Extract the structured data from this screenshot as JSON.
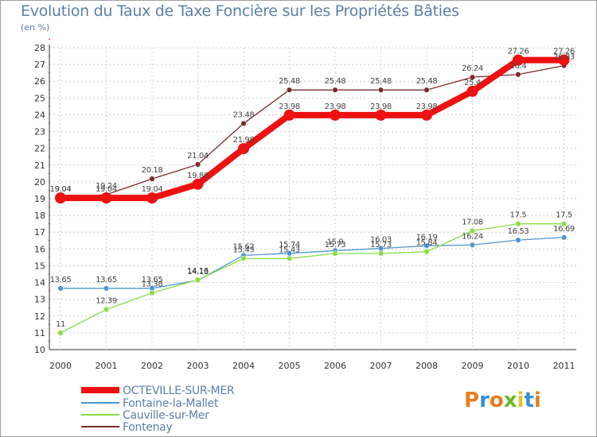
{
  "header": {
    "title": "Evolution du Taux de Taxe Foncière sur les Propriétés Bâties",
    "unit": "(en %)"
  },
  "brand": {
    "letters": [
      "P",
      "r",
      "o",
      "x",
      "i",
      "t",
      "i"
    ],
    "colors": [
      "#e87d1e",
      "#3b8fd4",
      "#e87d1e",
      "#66bb22",
      "#e8c21e",
      "#3b8fd4",
      "#e87d1e"
    ]
  },
  "chart_data": {
    "type": "line",
    "title": "Evolution du Taux de Taxe Foncière sur les Propriétés Bâties",
    "ylabel": "(en %)",
    "xlabel": "",
    "ylim": [
      10,
      28
    ],
    "yticks": [
      10,
      11,
      12,
      13,
      14,
      15,
      16,
      17,
      18,
      19,
      20,
      21,
      22,
      23,
      24,
      25,
      26,
      27,
      28
    ],
    "categories": [
      "2000",
      "2001",
      "2002",
      "2003",
      "2004",
      "2005",
      "2006",
      "2007",
      "2008",
      "2009",
      "2010",
      "2011"
    ],
    "legend_position": "bottom-left",
    "series": [
      {
        "name": "OCTEVILLE-SUR-MER",
        "color": "#ee1111",
        "emphasis": true,
        "values": [
          19.04,
          19.04,
          19.04,
          19.86,
          21.98,
          23.98,
          23.98,
          23.98,
          23.98,
          25.4,
          27.26,
          27.26
        ],
        "labels": [
          "19.04",
          "19.04",
          "19.04",
          "19.86",
          "21.98",
          "23.98",
          "23.98",
          "23.98",
          "23.98",
          "25.4",
          "27.26",
          "27.26"
        ]
      },
      {
        "name": "Fontaine-la-Mallet",
        "color": "#4f95d2",
        "emphasis": false,
        "values": [
          13.65,
          13.65,
          13.65,
          14.13,
          15.62,
          15.74,
          15.9,
          16.03,
          16.19,
          16.24,
          16.53,
          16.69
        ],
        "labels": [
          "13.65",
          "13.65",
          "13.65",
          "14.13",
          "15.62",
          "15.74",
          "15.9",
          "16.03",
          "16.19",
          "16.24",
          "16.53",
          "16.69"
        ]
      },
      {
        "name": "Cauville-sur-Mer",
        "color": "#88dd44",
        "emphasis": false,
        "values": [
          11,
          12.39,
          13.38,
          14.16,
          15.43,
          15.43,
          15.73,
          15.73,
          15.84,
          17.08,
          17.5,
          17.5
        ],
        "labels": [
          "11",
          "12.39",
          "13.38",
          "14.16",
          "15.43",
          "15.43",
          "15.73",
          "15.73",
          "15.84",
          "17.08",
          "17.5",
          "17.5"
        ]
      },
      {
        "name": "Fontenay",
        "color": "#7a2a2a",
        "emphasis": false,
        "values": [
          19.04,
          19.24,
          20.18,
          21.04,
          23.48,
          25.48,
          25.48,
          25.48,
          25.48,
          26.24,
          26.4,
          26.93
        ],
        "labels": [
          "19.04",
          "19.24",
          "20.18",
          "21.04",
          "23.48",
          "25.48",
          "25.48",
          "25.48",
          "25.48",
          "26.24",
          "26.4",
          "26.93"
        ]
      }
    ]
  }
}
